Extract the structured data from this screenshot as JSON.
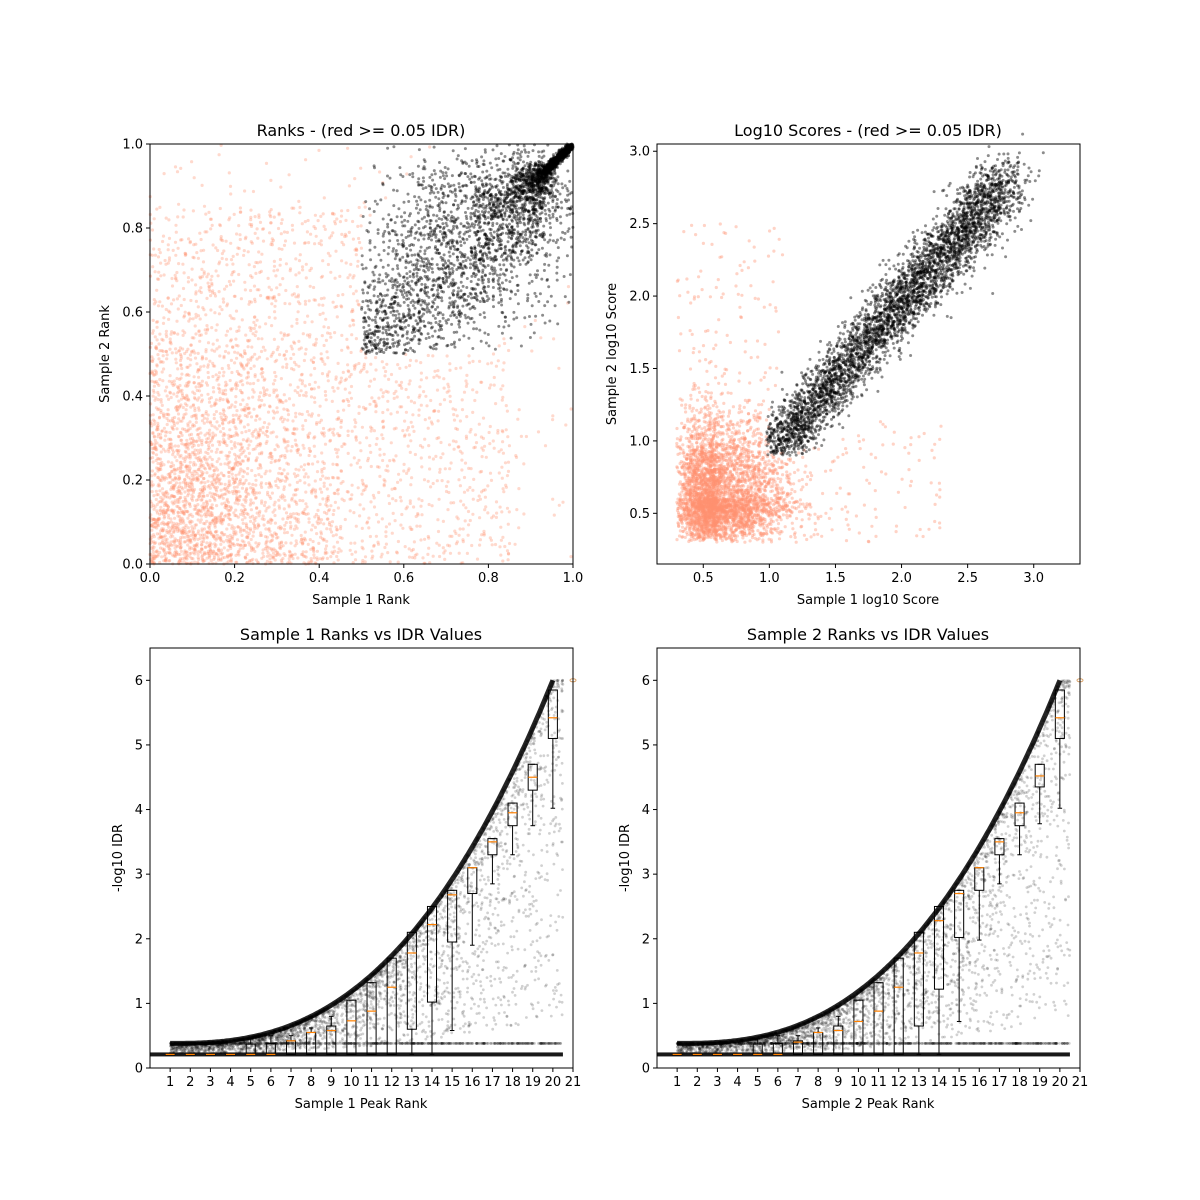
{
  "figure": {
    "title": ""
  },
  "colors": {
    "pass": "#000000",
    "fail": "#ff9270",
    "median": "#ff8000",
    "box": "#000000",
    "frame": "#000000"
  },
  "chart_data": [
    {
      "type": "scatter",
      "title": "Ranks - (red >= 0.05 IDR)",
      "xlabel": "Sample 1 Rank",
      "ylabel": "Sample 2 Rank",
      "xlim": [
        0,
        1
      ],
      "ylim": [
        0,
        1
      ],
      "xticks": [
        0.0,
        0.2,
        0.4,
        0.6,
        0.8,
        1.0
      ],
      "yticks": [
        0.0,
        0.2,
        0.4,
        0.6,
        0.8,
        1.0
      ],
      "xtick_labels": [
        "0.0",
        "0.2",
        "0.4",
        "0.6",
        "0.8",
        "1.0"
      ],
      "ytick_labels": [
        "0.0",
        "0.2",
        "0.4",
        "0.6",
        "0.8",
        "1.0"
      ],
      "grid": false,
      "series": [
        {
          "color": "fail",
          "shape": "points with IDR >= 0.05, spread over 0–0.8 on both axes, densest near (0.1, 0.2)"
        },
        {
          "color": "pass",
          "shape": "dense wedge from (0.5, 0.5) to (1.0, 1.0)"
        }
      ]
    },
    {
      "type": "scatter",
      "title": "Log10 Scores - (red >= 0.05 IDR)",
      "xlabel": "Sample 1 log10 Score",
      "ylabel": "Sample 2 log10 Score",
      "xlim": [
        0.15,
        3.35
      ],
      "ylim": [
        0.15,
        3.05
      ],
      "xticks": [
        0.5,
        1.0,
        1.5,
        2.0,
        2.5,
        3.0
      ],
      "yticks": [
        0.5,
        1.0,
        1.5,
        2.0,
        2.5,
        3.0
      ],
      "xtick_labels": [
        "0.5",
        "1.0",
        "1.5",
        "2.0",
        "2.5",
        "3.0"
      ],
      "ytick_labels": [
        "0.5",
        "1.0",
        "1.5",
        "2.0",
        "2.5",
        "3.0"
      ],
      "grid": false,
      "series": [
        {
          "color": "fail",
          "shape": "blob from 0.3 to 1.3, densest near (0.6, 0.6)"
        },
        {
          "color": "pass",
          "shape": "band from (1.0, 0.9) to (2.8, 2.8)"
        }
      ]
    },
    {
      "type": "scatter",
      "title": "Sample 1 Ranks vs IDR Values",
      "xlabel": "Sample 1 Peak Rank",
      "ylabel": "-log10 IDR",
      "xlim": [
        0,
        21
      ],
      "ylim": [
        0,
        6.5
      ],
      "xticks": [
        1,
        2,
        3,
        4,
        5,
        6,
        7,
        8,
        9,
        10,
        11,
        12,
        13,
        14,
        15,
        16,
        17,
        18,
        19,
        20,
        21
      ],
      "yticks": [
        0,
        1,
        2,
        3,
        4,
        5,
        6
      ],
      "xtick_labels": [
        "1",
        "2",
        "3",
        "4",
        "5",
        "6",
        "7",
        "8",
        "9",
        "10",
        "11",
        "12",
        "13",
        "14",
        "15",
        "16",
        "17",
        "18",
        "19",
        "20",
        "21"
      ],
      "ytick_labels": [
        "0",
        "1",
        "2",
        "3",
        "4",
        "5",
        "6"
      ],
      "grid": false,
      "boxes": [
        {
          "x": 1,
          "q1": 0.21,
          "median": 0.21,
          "q3": 0.21,
          "whislo": 0.21,
          "whishi": 0.21
        },
        {
          "x": 2,
          "q1": 0.21,
          "median": 0.21,
          "q3": 0.21,
          "whislo": 0.21,
          "whishi": 0.21
        },
        {
          "x": 3,
          "q1": 0.21,
          "median": 0.21,
          "q3": 0.21,
          "whislo": 0.21,
          "whishi": 0.21
        },
        {
          "x": 4,
          "q1": 0.21,
          "median": 0.21,
          "q3": 0.21,
          "whislo": 0.21,
          "whishi": 0.21
        },
        {
          "x": 5,
          "q1": 0.21,
          "median": 0.21,
          "q3": 0.37,
          "whislo": 0.21,
          "whishi": 0.45
        },
        {
          "x": 6,
          "q1": 0.21,
          "median": 0.21,
          "q3": 0.38,
          "whislo": 0.21,
          "whishi": 0.5
        },
        {
          "x": 7,
          "q1": 0.21,
          "median": 0.42,
          "q3": 0.42,
          "whislo": 0.21,
          "whishi": 0.5
        },
        {
          "x": 8,
          "q1": 0.21,
          "median": 0.55,
          "q3": 0.55,
          "whislo": 0.21,
          "whishi": 0.62
        },
        {
          "x": 9,
          "q1": 0.21,
          "median": 0.58,
          "q3": 0.65,
          "whislo": 0.21,
          "whishi": 0.8
        },
        {
          "x": 10,
          "q1": 0.21,
          "median": 0.73,
          "q3": 1.05,
          "whislo": 0.21,
          "whishi": 1.05
        },
        {
          "x": 11,
          "q1": 0.21,
          "median": 0.88,
          "q3": 1.32,
          "whislo": 0.21,
          "whishi": 1.32
        },
        {
          "x": 12,
          "q1": 0.21,
          "median": 1.25,
          "q3": 1.7,
          "whislo": 0.21,
          "whishi": 1.7
        },
        {
          "x": 13,
          "q1": 0.6,
          "median": 1.78,
          "q3": 2.1,
          "whislo": 0.21,
          "whishi": 2.1
        },
        {
          "x": 14,
          "q1": 1.02,
          "median": 2.22,
          "q3": 2.5,
          "whislo": 0.21,
          "whishi": 2.5
        },
        {
          "x": 15,
          "q1": 1.95,
          "median": 2.68,
          "q3": 2.75,
          "whislo": 0.58,
          "whishi": 2.75
        },
        {
          "x": 16,
          "q1": 2.7,
          "median": 3.1,
          "q3": 3.1,
          "whislo": 1.9,
          "whishi": 3.1
        },
        {
          "x": 17,
          "q1": 3.3,
          "median": 3.5,
          "q3": 3.55,
          "whislo": 2.85,
          "whishi": 3.55
        },
        {
          "x": 18,
          "q1": 3.75,
          "median": 3.95,
          "q3": 4.1,
          "whislo": 3.3,
          "whishi": 4.1
        },
        {
          "x": 19,
          "q1": 4.3,
          "median": 4.5,
          "q3": 4.7,
          "whislo": 3.75,
          "whishi": 4.7
        },
        {
          "x": 20,
          "q1": 5.1,
          "median": 5.42,
          "q3": 5.85,
          "whislo": 4.02,
          "whishi": 5.85
        }
      ],
      "series": [
        {
          "color": "pass",
          "shape": "peaks climbing from about 0.4 at rank 1 to 6.0 at rank 20, with a flat row at 0.21"
        }
      ]
    },
    {
      "type": "scatter",
      "title": "Sample 2 Ranks vs IDR Values",
      "xlabel": "Sample 2 Peak Rank",
      "ylabel": "-log10 IDR",
      "xlim": [
        0,
        21
      ],
      "ylim": [
        0,
        6.5
      ],
      "xticks": [
        1,
        2,
        3,
        4,
        5,
        6,
        7,
        8,
        9,
        10,
        11,
        12,
        13,
        14,
        15,
        16,
        17,
        18,
        19,
        20,
        21
      ],
      "yticks": [
        0,
        1,
        2,
        3,
        4,
        5,
        6
      ],
      "xtick_labels": [
        "1",
        "2",
        "3",
        "4",
        "5",
        "6",
        "7",
        "8",
        "9",
        "10",
        "11",
        "12",
        "13",
        "14",
        "15",
        "16",
        "17",
        "18",
        "19",
        "20",
        "21"
      ],
      "ytick_labels": [
        "0",
        "1",
        "2",
        "3",
        "4",
        "5",
        "6"
      ],
      "grid": false,
      "boxes": [
        {
          "x": 1,
          "q1": 0.21,
          "median": 0.21,
          "q3": 0.21,
          "whislo": 0.21,
          "whishi": 0.21
        },
        {
          "x": 2,
          "q1": 0.21,
          "median": 0.21,
          "q3": 0.21,
          "whislo": 0.21,
          "whishi": 0.21
        },
        {
          "x": 3,
          "q1": 0.21,
          "median": 0.21,
          "q3": 0.21,
          "whislo": 0.21,
          "whishi": 0.21
        },
        {
          "x": 4,
          "q1": 0.21,
          "median": 0.21,
          "q3": 0.21,
          "whislo": 0.21,
          "whishi": 0.21
        },
        {
          "x": 5,
          "q1": 0.21,
          "median": 0.21,
          "q3": 0.37,
          "whislo": 0.21,
          "whishi": 0.45
        },
        {
          "x": 6,
          "q1": 0.21,
          "median": 0.21,
          "q3": 0.38,
          "whislo": 0.21,
          "whishi": 0.5
        },
        {
          "x": 7,
          "q1": 0.21,
          "median": 0.4,
          "q3": 0.42,
          "whislo": 0.21,
          "whishi": 0.5
        },
        {
          "x": 8,
          "q1": 0.21,
          "median": 0.55,
          "q3": 0.55,
          "whislo": 0.21,
          "whishi": 0.62
        },
        {
          "x": 9,
          "q1": 0.21,
          "median": 0.58,
          "q3": 0.65,
          "whislo": 0.21,
          "whishi": 0.8
        },
        {
          "x": 10,
          "q1": 0.21,
          "median": 0.72,
          "q3": 1.05,
          "whislo": 0.21,
          "whishi": 1.05
        },
        {
          "x": 11,
          "q1": 0.21,
          "median": 0.88,
          "q3": 1.32,
          "whislo": 0.21,
          "whishi": 1.32
        },
        {
          "x": 12,
          "q1": 0.21,
          "median": 1.25,
          "q3": 1.7,
          "whislo": 0.21,
          "whishi": 1.7
        },
        {
          "x": 13,
          "q1": 0.65,
          "median": 1.78,
          "q3": 2.1,
          "whislo": 0.21,
          "whishi": 2.1
        },
        {
          "x": 14,
          "q1": 1.22,
          "median": 2.28,
          "q3": 2.5,
          "whislo": 0.21,
          "whishi": 2.5
        },
        {
          "x": 15,
          "q1": 2.02,
          "median": 2.7,
          "q3": 2.75,
          "whislo": 0.72,
          "whishi": 2.75
        },
        {
          "x": 16,
          "q1": 2.75,
          "median": 3.1,
          "q3": 3.1,
          "whislo": 1.98,
          "whishi": 3.1
        },
        {
          "x": 17,
          "q1": 3.3,
          "median": 3.5,
          "q3": 3.55,
          "whislo": 2.85,
          "whishi": 3.55
        },
        {
          "x": 18,
          "q1": 3.75,
          "median": 3.95,
          "q3": 4.1,
          "whislo": 3.3,
          "whishi": 4.1
        },
        {
          "x": 19,
          "q1": 4.35,
          "median": 4.52,
          "q3": 4.7,
          "whislo": 3.78,
          "whishi": 4.7
        },
        {
          "x": 20,
          "q1": 5.1,
          "median": 5.42,
          "q3": 5.85,
          "whislo": 4.02,
          "whishi": 5.85
        }
      ],
      "series": [
        {
          "color": "pass",
          "shape": "peaks climbing from about 0.4 at rank 1 to 6.0 at rank 20, with a flat row at 0.21"
        }
      ]
    }
  ]
}
